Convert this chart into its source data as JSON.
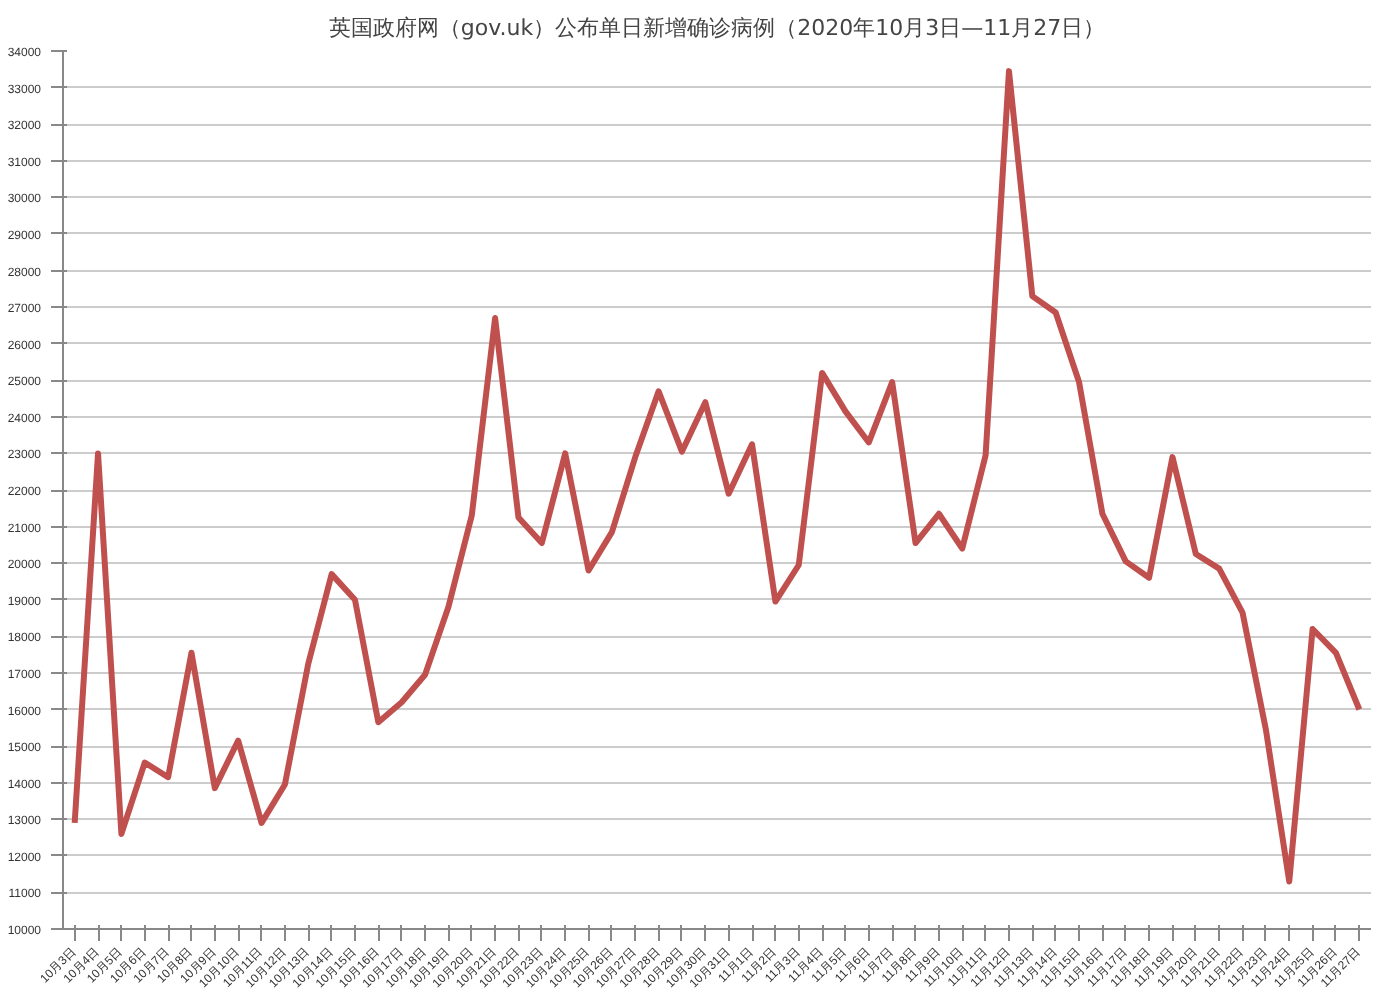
{
  "chart_data": {
    "type": "line",
    "title": "英国政府网（gov.uk）公布单日新增确诊病例（2020年10月3日—11月27日）",
    "categories": [
      "10月3日",
      "10月4日",
      "10月5日",
      "10月6日",
      "10月7日",
      "10月8日",
      "10月9日",
      "10月10日",
      "10月11日",
      "10月12日",
      "10月13日",
      "10月14日",
      "10月15日",
      "10月16日",
      "10月17日",
      "10月18日",
      "10月19日",
      "10月20日",
      "10月21日",
      "10月22日",
      "10月23日",
      "10月24日",
      "10月25日",
      "10月26日",
      "10月27日",
      "10月28日",
      "10月29日",
      "10月30日",
      "10月31日",
      "11月1日",
      "11月2日",
      "11月3日",
      "11月4日",
      "11月5日",
      "11月6日",
      "11月7日",
      "11月8日",
      "11月9日",
      "11月10日",
      "11月11日",
      "11月12日",
      "11月13日",
      "11月14日",
      "11月15日",
      "11月16日",
      "11月17日",
      "11月18日",
      "11月19日",
      "11月20日",
      "11月21日",
      "11月22日",
      "11月23日",
      "11月24日",
      "11月25日",
      "11月26日",
      "11月27日"
    ],
    "series": [
      {
        "color": "#c0504d",
        "values": [
          12900,
          23000,
          12600,
          14550,
          14150,
          17550,
          13850,
          15150,
          12900,
          13950,
          17250,
          19700,
          19000,
          15650,
          16200,
          16950,
          18800,
          21300,
          26700,
          21250,
          20550,
          23000,
          19800,
          20850,
          22900,
          24700,
          23050,
          24400,
          21900,
          23250,
          18950,
          19950,
          25200,
          24150,
          23300,
          24950,
          20550,
          21350,
          20400,
          22950,
          33450,
          27300,
          26850,
          24950,
          21350,
          20050,
          19600,
          22900,
          20250,
          19850,
          18650,
          15450,
          11300,
          18200,
          17550,
          16000
        ]
      }
    ],
    "ylim": [
      10000,
      34000
    ],
    "yticks": [
      10000,
      11000,
      12000,
      13000,
      14000,
      15000,
      16000,
      17000,
      18000,
      19000,
      20000,
      21000,
      22000,
      23000,
      24000,
      25000,
      26000,
      27000,
      28000,
      29000,
      30000,
      31000,
      32000,
      33000,
      34000
    ],
    "grid": "y",
    "marker": "none",
    "line_style": "solid"
  }
}
